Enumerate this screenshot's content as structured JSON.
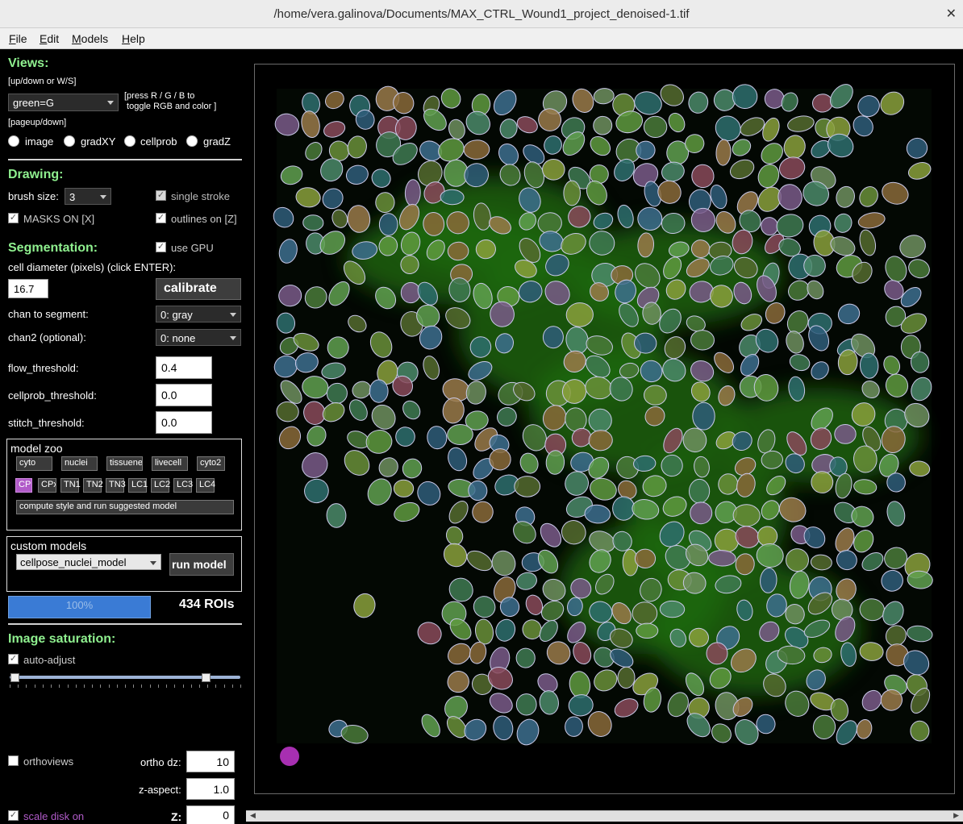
{
  "window": {
    "title": "/home/vera.galinova/Documents/MAX_CTRL_Wound1_project_denoised-1.tif",
    "close_glyph": "✕"
  },
  "menu": [
    "File",
    "Edit",
    "Models",
    "Help"
  ],
  "views": {
    "heading": "Views:",
    "hint_updown": "[up/down or W/S]",
    "channel_value": "green=G",
    "hint_rgb_1": "[press R / G / B to",
    "hint_rgb_2": " toggle RGB and color ]",
    "hint_pageup": "[pageup/down]",
    "radio_labels": [
      "image",
      "gradXY",
      "cellprob",
      "gradZ"
    ]
  },
  "drawing": {
    "heading": "Drawing:",
    "brush_label": "brush size:",
    "brush_value": "3",
    "single_stroke": "single stroke",
    "masks_on": "MASKS ON [X]",
    "outlines_on": "outlines on [Z]"
  },
  "segmentation": {
    "heading": "Segmentation:",
    "use_gpu": "use GPU",
    "diameter_label": "cell diameter (pixels) (click ENTER):",
    "diameter_value": "16.7",
    "calibrate": "calibrate",
    "chan_label": "chan to segment:",
    "chan_value": "0: gray",
    "chan2_label": "chan2 (optional):",
    "chan2_value": "0: none",
    "flow_label": "flow_threshold:",
    "flow_value": "0.4",
    "cellprob_label": "cellprob_threshold:",
    "cellprob_value": "0.0",
    "stitch_label": "stitch_threshold:",
    "stitch_value": "0.0"
  },
  "model_zoo": {
    "heading": "model zoo",
    "models": [
      "cyto",
      "nuclei",
      "tissuenet",
      "livecell",
      "cyto2"
    ],
    "styles": [
      "CP",
      "CPx",
      "TN1",
      "TN2",
      "TN3",
      "LC1",
      "LC2",
      "LC3",
      "LC4"
    ],
    "suggest": "compute style and run suggested model"
  },
  "custom_models": {
    "heading": "custom models",
    "value": "cellpose_nuclei_model",
    "run": "run model"
  },
  "progress": {
    "label": "100%",
    "fraction": 1.0
  },
  "rois": "434 ROIs",
  "saturation": {
    "heading": "Image saturation:",
    "auto_adjust": "auto-adjust",
    "low": 0.02,
    "high": 0.85
  },
  "ortho": {
    "orthoviews": "orthoviews",
    "dz_label": "ortho dz:",
    "dz_value": "10",
    "aspect_label": "z-aspect:",
    "aspect_value": "1.0",
    "scale_disk": "scale disk on",
    "z_label": "Z:",
    "z_value": "0"
  },
  "colors": {
    "heading_green": "#8ff08f",
    "accent_purple": "#b15bc9",
    "progress_blue": "#3a7bd5",
    "disk_purple": "#a72fb1"
  }
}
